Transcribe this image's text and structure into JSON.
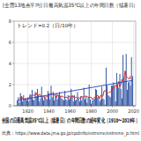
{
  "chart_data": {
    "type": "bar",
    "title": "[全国13地点平均] 日最高気温35℃以上の年間日数（猛暑日）",
    "subtitle": "トレンド=0.2（日/10年）",
    "annotations": [
      "全国の日最高気温35℃以上（猛暑日）の年間日数の経年変化（1910〜2019年）",
      "出典：https://www.data.jma.go.jp/cpdinfo/extreme/extreme_p.html"
    ],
    "x": [
      1910,
      1911,
      1912,
      1913,
      1914,
      1915,
      1916,
      1917,
      1918,
      1919,
      1920,
      1921,
      1922,
      1923,
      1924,
      1925,
      1926,
      1927,
      1928,
      1929,
      1930,
      1931,
      1932,
      1933,
      1934,
      1935,
      1936,
      1937,
      1938,
      1939,
      1940,
      1941,
      1942,
      1943,
      1944,
      1945,
      1946,
      1947,
      1948,
      1949,
      1950,
      1951,
      1952,
      1953,
      1954,
      1955,
      1956,
      1957,
      1958,
      1959,
      1960,
      1961,
      1962,
      1963,
      1964,
      1965,
      1966,
      1967,
      1968,
      1969,
      1970,
      1971,
      1972,
      1973,
      1974,
      1975,
      1976,
      1977,
      1978,
      1979,
      1980,
      1981,
      1982,
      1983,
      1984,
      1985,
      1986,
      1987,
      1988,
      1989,
      1990,
      1991,
      1992,
      1993,
      1994,
      1995,
      1996,
      1997,
      1998,
      1999,
      2000,
      2001,
      2002,
      2003,
      2004,
      2005,
      2006,
      2007,
      2008,
      2009,
      2010,
      2011,
      2012,
      2013,
      2014,
      2015,
      2016,
      2017,
      2018,
      2019
    ],
    "series": [
      {
        "type": "bar",
        "color": "#2b4fa0",
        "values": [
          0.5,
          0.8,
          0.3,
          1.2,
          0.9,
          0.4,
          1.0,
          0.6,
          0.7,
          0.5,
          0.8,
          0.4,
          1.1,
          0.9,
          1.5,
          0.6,
          0.5,
          1.3,
          0.9,
          1.6,
          1.0,
          0.4,
          0.7,
          1.8,
          0.8,
          0.5,
          0.9,
          0.7,
          0.6,
          1.4,
          1.1,
          0.6,
          1.9,
          0.8,
          1.3,
          0.5,
          0.9,
          1.2,
          0.6,
          1.0,
          1.3,
          0.9,
          0.7,
          0.6,
          0.5,
          1.4,
          0.6,
          0.5,
          1.0,
          0.6,
          0.8,
          1.6,
          1.0,
          0.4,
          1.0,
          0.5,
          0.6,
          1.3,
          0.7,
          0.4,
          0.9,
          0.5,
          0.8,
          1.7,
          0.6,
          0.9,
          0.3,
          0.8,
          2.0,
          0.6,
          0.2,
          0.5,
          0.6,
          0.7,
          1.6,
          1.5,
          0.8,
          0.9,
          0.4,
          0.6,
          1.8,
          0.7,
          0.6,
          0.1,
          3.6,
          1.9,
          1.0,
          0.9,
          0.8,
          1.9,
          1.9,
          2.2,
          1.8,
          0.4,
          3.1,
          2.0,
          1.7,
          3.0,
          1.6,
          0.7,
          4.8,
          2.4,
          2.8,
          4.9,
          1.5,
          2.2,
          2.3,
          1.9,
          4.6,
          2.8
        ]
      },
      {
        "type": "line",
        "color": "#e0201b",
        "values": [
          null,
          null,
          0.7,
          0.7,
          0.9,
          0.7,
          0.7,
          0.6,
          0.7,
          0.6,
          0.6,
          0.7,
          0.9,
          1.0,
          0.9,
          1.0,
          1.0,
          1.0,
          1.2,
          1.0,
          1.0,
          1.1,
          0.9,
          0.8,
          0.9,
          0.9,
          0.7,
          0.8,
          0.9,
          0.9,
          1.1,
          1.2,
          1.1,
          1.2,
          1.1,
          1.0,
          1.0,
          0.8,
          1.0,
          1.0,
          0.9,
          0.9,
          0.9,
          0.9,
          0.8,
          0.8,
          0.8,
          0.8,
          0.7,
          0.9,
          0.9,
          0.8,
          0.9,
          0.9,
          0.7,
          0.8,
          0.8,
          0.7,
          0.8,
          0.7,
          0.7,
          0.9,
          0.8,
          0.9,
          0.9,
          0.9,
          0.9,
          0.8,
          0.8,
          0.8,
          0.8,
          0.6,
          0.7,
          0.8,
          0.8,
          0.9,
          1.0,
          0.8,
          0.7,
          1.0,
          0.9,
          0.9,
          1.4,
          1.4,
          1.4,
          1.1,
          1.2,
          1.3,
          1.3,
          1.4,
          1.6,
          1.6,
          1.9,
          1.9,
          1.8,
          2.0,
          2.3,
          1.8,
          2.0,
          2.5,
          2.3,
          2.6,
          3.3,
          2.8,
          2.7,
          2.6,
          2.5,
          2.8,
          null,
          null
        ]
      },
      {
        "type": "line",
        "color": "#1f3fc8",
        "line_style": "solid",
        "x": [
          1910,
          2019
        ],
        "values": [
          0.5,
          2.4
        ]
      }
    ],
    "xlim": [
      1907,
      2022
    ],
    "xticks": [
      1920,
      1940,
      1960,
      1980,
      2000,
      2020
    ],
    "ylim": [
      0,
      8
    ],
    "yticks": [
      0,
      2,
      4,
      6,
      8
    ],
    "grid": true
  }
}
